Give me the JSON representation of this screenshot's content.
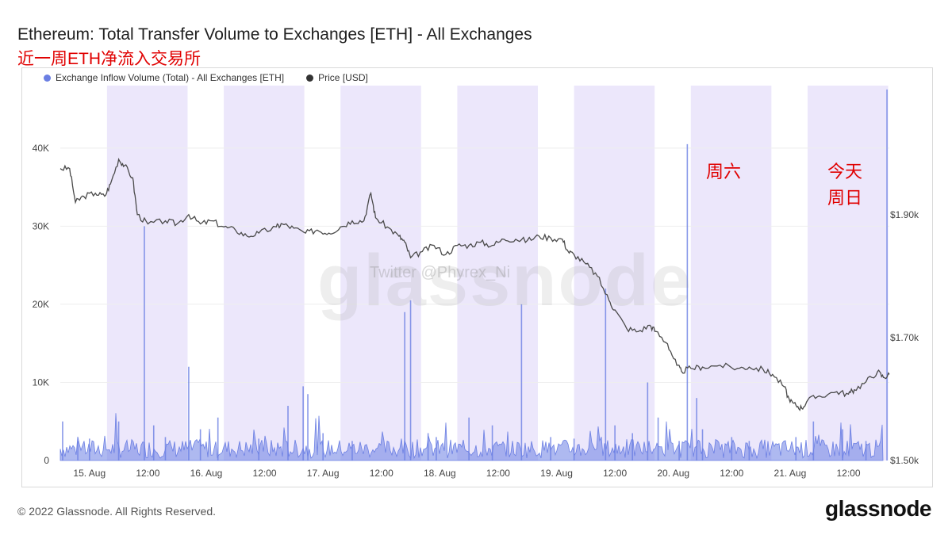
{
  "title": "Ethereum: Total Transfer Volume to Exchanges [ETH] - All Exchanges",
  "subtitle": "近一周ETH净流入交易所",
  "footer": "© 2022 Glassnode. All Rights Reserved.",
  "brand": "glassnode",
  "watermark": "glassnode",
  "watermark_twitter": "Twitter @Phyrex_Ni",
  "annotations": {
    "saturday": "周六",
    "today_line1": "今天",
    "today_line2": "周日"
  },
  "colors": {
    "volume": "#6b7fe3",
    "price": "#4a4a4a",
    "weekend_band": "#ece7fb",
    "annotation": "#e00000"
  },
  "chart_data": {
    "type": "area",
    "legend": [
      "Exchange Inflow Volume (Total) - All Exchanges [ETH]",
      "Price [USD]"
    ],
    "legend_position": "top-left",
    "x_ticks": [
      "15. Aug",
      "12:00",
      "16. Aug",
      "12:00",
      "17. Aug",
      "12:00",
      "18. Aug",
      "12:00",
      "19. Aug",
      "12:00",
      "20. Aug",
      "12:00",
      "21. Aug",
      "12:00"
    ],
    "x_range_days": [
      14.6,
      21.7
    ],
    "left_axis": {
      "label": "",
      "ticks": [
        "0",
        "10K",
        "20K",
        "30K",
        "40K"
      ],
      "ylim": [
        0,
        48000
      ]
    },
    "right_axis": {
      "label": "",
      "ticks": [
        "$1.50k",
        "$1.70k",
        "$1.90k"
      ],
      "ylim": [
        1500,
        2110
      ]
    },
    "shaded_bands_days": [
      [
        15.0,
        15.69
      ],
      [
        16.0,
        16.69
      ],
      [
        17.0,
        17.69
      ],
      [
        18.0,
        18.69
      ],
      [
        19.0,
        19.69
      ],
      [
        20.0,
        20.69
      ],
      [
        21.0,
        21.69
      ]
    ],
    "series": [
      {
        "name": "Exchange Inflow Volume (Total) - All Exchanges [ETH]",
        "axis": "left",
        "baseline": 1500,
        "spikes": [
          [
            14.62,
            5000
          ],
          [
            14.75,
            2500
          ],
          [
            14.85,
            2800
          ],
          [
            15.1,
            5000
          ],
          [
            15.32,
            30000
          ],
          [
            15.4,
            4500
          ],
          [
            15.5,
            3000
          ],
          [
            15.7,
            12000
          ],
          [
            15.8,
            4000
          ],
          [
            15.95,
            5500
          ],
          [
            16.3,
            2800
          ],
          [
            16.55,
            7000
          ],
          [
            16.68,
            9500
          ],
          [
            16.72,
            8500
          ],
          [
            16.85,
            3500
          ],
          [
            17.1,
            2500
          ],
          [
            17.55,
            19000
          ],
          [
            17.6,
            20500
          ],
          [
            17.75,
            3500
          ],
          [
            17.82,
            3000
          ],
          [
            18.1,
            5500
          ],
          [
            18.3,
            4500
          ],
          [
            18.55,
            20000
          ],
          [
            18.8,
            3000
          ],
          [
            19.0,
            2800
          ],
          [
            19.27,
            22000
          ],
          [
            19.35,
            4500
          ],
          [
            19.5,
            3500
          ],
          [
            19.63,
            10000
          ],
          [
            19.72,
            5500
          ],
          [
            19.9,
            2500
          ],
          [
            19.97,
            40500
          ],
          [
            20.05,
            8000
          ],
          [
            20.1,
            4000
          ],
          [
            20.35,
            3000
          ],
          [
            20.5,
            2500
          ],
          [
            20.9,
            3000
          ],
          [
            21.05,
            5000
          ],
          [
            21.3,
            4000
          ],
          [
            21.5,
            2500
          ],
          [
            21.68,
            47500
          ]
        ]
      },
      {
        "name": "Price [USD]",
        "axis": "right",
        "points": [
          [
            14.6,
            1975
          ],
          [
            14.68,
            1975
          ],
          [
            14.73,
            1920
          ],
          [
            14.8,
            1930
          ],
          [
            14.9,
            1935
          ],
          [
            14.98,
            1930
          ],
          [
            15.03,
            1950
          ],
          [
            15.1,
            1990
          ],
          [
            15.15,
            1980
          ],
          [
            15.22,
            1960
          ],
          [
            15.26,
            1900
          ],
          [
            15.35,
            1885
          ],
          [
            15.5,
            1890
          ],
          [
            15.6,
            1885
          ],
          [
            15.7,
            1900
          ],
          [
            15.8,
            1885
          ],
          [
            15.9,
            1890
          ],
          [
            16.0,
            1880
          ],
          [
            16.1,
            1875
          ],
          [
            16.2,
            1865
          ],
          [
            16.3,
            1870
          ],
          [
            16.45,
            1880
          ],
          [
            16.5,
            1885
          ],
          [
            16.6,
            1878
          ],
          [
            16.7,
            1870
          ],
          [
            16.8,
            1875
          ],
          [
            16.9,
            1870
          ],
          [
            17.0,
            1880
          ],
          [
            17.1,
            1890
          ],
          [
            17.2,
            1890
          ],
          [
            17.26,
            1935
          ],
          [
            17.3,
            1895
          ],
          [
            17.4,
            1880
          ],
          [
            17.5,
            1865
          ],
          [
            17.55,
            1855
          ],
          [
            17.6,
            1830
          ],
          [
            17.7,
            1840
          ],
          [
            17.8,
            1850
          ],
          [
            17.9,
            1835
          ],
          [
            18.0,
            1850
          ],
          [
            18.1,
            1850
          ],
          [
            18.2,
            1855
          ],
          [
            18.3,
            1850
          ],
          [
            18.4,
            1860
          ],
          [
            18.5,
            1860
          ],
          [
            18.6,
            1858
          ],
          [
            18.7,
            1865
          ],
          [
            18.8,
            1862
          ],
          [
            18.9,
            1860
          ],
          [
            18.95,
            1840
          ],
          [
            19.0,
            1835
          ],
          [
            19.1,
            1820
          ],
          [
            19.2,
            1800
          ],
          [
            19.3,
            1760
          ],
          [
            19.35,
            1745
          ],
          [
            19.45,
            1715
          ],
          [
            19.55,
            1710
          ],
          [
            19.65,
            1720
          ],
          [
            19.7,
            1710
          ],
          [
            19.8,
            1690
          ],
          [
            19.88,
            1655
          ],
          [
            19.92,
            1645
          ],
          [
            20.0,
            1650
          ],
          [
            20.1,
            1652
          ],
          [
            20.25,
            1655
          ],
          [
            20.4,
            1650
          ],
          [
            20.5,
            1652
          ],
          [
            20.62,
            1648
          ],
          [
            20.7,
            1640
          ],
          [
            20.8,
            1620
          ],
          [
            20.85,
            1595
          ],
          [
            20.9,
            1590
          ],
          [
            20.95,
            1585
          ],
          [
            21.0,
            1598
          ],
          [
            21.1,
            1605
          ],
          [
            21.25,
            1612
          ],
          [
            21.35,
            1608
          ],
          [
            21.4,
            1615
          ],
          [
            21.5,
            1628
          ],
          [
            21.6,
            1645
          ],
          [
            21.65,
            1635
          ],
          [
            21.7,
            1640
          ]
        ]
      }
    ]
  }
}
